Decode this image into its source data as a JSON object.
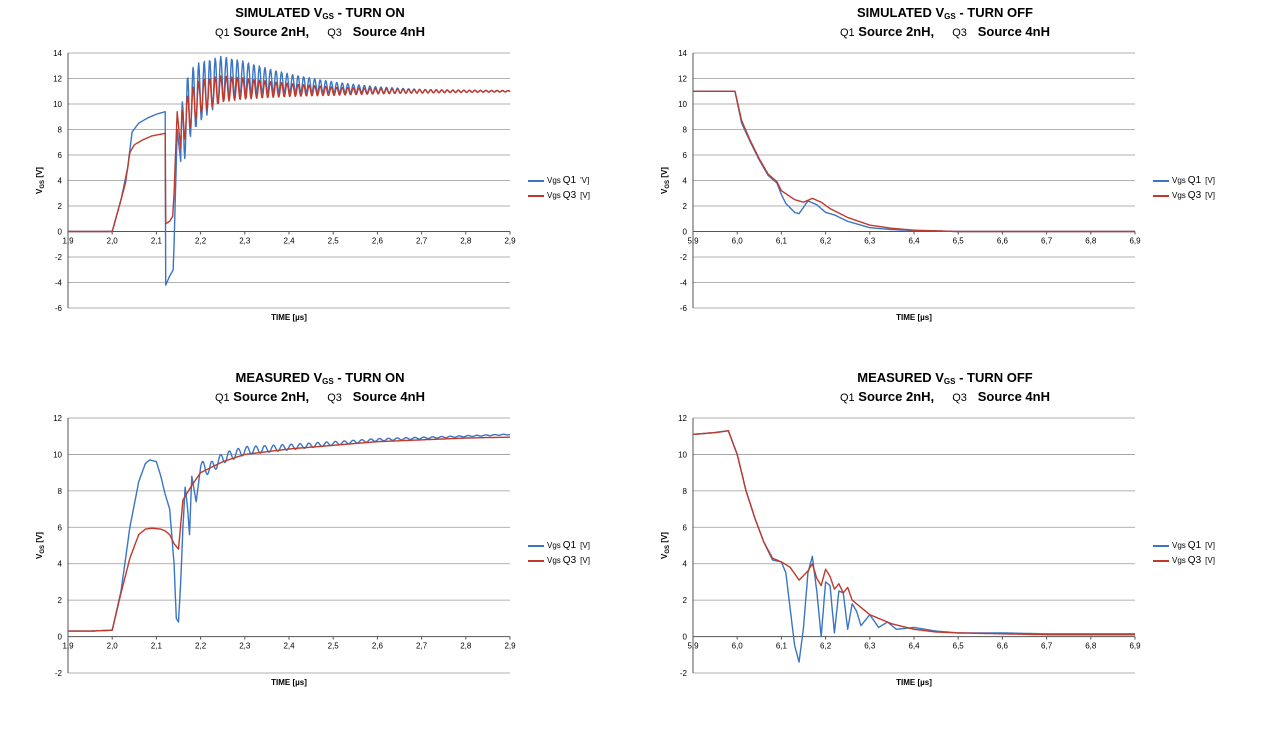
{
  "colors": {
    "q1": "#3a75c4",
    "q3": "#c0392b"
  },
  "chart_data": [
    {
      "type": "line",
      "title_main": "SIMULATED V",
      "title_sub": "GS",
      "title_rest": " - TURN ON",
      "subtitle": {
        "q1": "Q1",
        "s1": "Source 2nH,",
        "q3": "Q3",
        "s3": "Source 4nH"
      },
      "xlabel": "TIME [µs]",
      "ylabel_main": "V",
      "ylabel_sub": "GS",
      "ylabel_rest": " [V]",
      "xlim": [
        1.9,
        2.9
      ],
      "ylim": [
        -6,
        14
      ],
      "xticks": [
        "1,9",
        "2,0",
        "2,1",
        "2,2",
        "2,3",
        "2,4",
        "2,5",
        "2,6",
        "2,7",
        "2,8",
        "2,9"
      ],
      "yticks": [
        "-6",
        "-4",
        "-2",
        "0",
        "2",
        "4",
        "6",
        "8",
        "10",
        "12",
        "14"
      ],
      "ystep": 2,
      "legend": [
        {
          "pre": "Vgs",
          "name": "Q1",
          "unit": "'V]"
        },
        {
          "pre": "Vgs",
          "name": "Q3",
          "unit": "[V]"
        }
      ],
      "series": [
        {
          "name": "Vgs Q1",
          "x": [
            1.9,
            2.0,
            2.02,
            2.035,
            2.045,
            2.06,
            2.08,
            2.1,
            2.12,
            2.121,
            2.13,
            2.138,
            2.14,
            2.147,
            2.155,
            2.16,
            2.175,
            2.2,
            2.25,
            2.3,
            2.35,
            2.4,
            2.5,
            2.6,
            2.7,
            2.8,
            2.9
          ],
          "y": [
            0,
            0,
            2.5,
            5,
            7.8,
            8.5,
            8.9,
            9.2,
            9.4,
            -4.2,
            -3.5,
            -3.0,
            -1,
            8,
            5.5,
            8,
            10,
            11,
            12,
            12,
            11.8,
            11.6,
            11.3,
            11.1,
            11,
            11,
            11
          ],
          "osc": {
            "start": 2.155,
            "period": 0.0125,
            "amp0": 3.0,
            "decay": 0.18
          }
        },
        {
          "name": "Vgs Q3",
          "x": [
            1.9,
            2.0,
            2.02,
            2.03,
            2.04,
            2.05,
            2.07,
            2.09,
            2.12,
            2.121,
            2.13,
            2.137,
            2.14,
            2.147,
            2.155,
            2.16,
            2.18,
            2.2,
            2.25,
            2.3,
            2.4,
            2.5,
            2.6,
            2.7,
            2.8,
            2.9
          ],
          "y": [
            0,
            0,
            2.5,
            3.8,
            6.2,
            6.8,
            7.2,
            7.5,
            7.7,
            0.6,
            0.8,
            1.2,
            3,
            9.4,
            6.5,
            8.5,
            9.8,
            10.6,
            11.2,
            11.2,
            11.1,
            11,
            11,
            11,
            11,
            11
          ],
          "osc": {
            "start": 2.155,
            "period": 0.0125,
            "amp0": 1.6,
            "decay": 0.22
          }
        }
      ]
    },
    {
      "type": "line",
      "title_main": "SIMULATED V",
      "title_sub": "GS",
      "title_rest": " - TURN OFF",
      "subtitle": {
        "q1": "Q1",
        "s1": "Source 2nH,",
        "q3": "Q3",
        "s3": "Source 4nH"
      },
      "xlabel": "TIME [µs]",
      "ylabel_main": "V",
      "ylabel_sub": "GS",
      "ylabel_rest": " [V]",
      "xlim": [
        5.9,
        6.9
      ],
      "ylim": [
        -6,
        14
      ],
      "xticks": [
        "5,9",
        "6,0",
        "6,1",
        "6,2",
        "6,3",
        "6,4",
        "6,5",
        "6,6",
        "6,7",
        "6,8",
        "6,9"
      ],
      "yticks": [
        "-6",
        "-4",
        "-2",
        "0",
        "2",
        "4",
        "6",
        "8",
        "10",
        "12",
        "14"
      ],
      "ystep": 2,
      "legend": [
        {
          "pre": "Vgs",
          "name": "Q1",
          "unit": "[V]"
        },
        {
          "pre": "Vgs",
          "name": "Q3",
          "unit": "[V]"
        }
      ],
      "series": [
        {
          "name": "Vgs Q1",
          "x": [
            5.9,
            5.99,
            5.995,
            6.01,
            6.03,
            6.05,
            6.07,
            6.09,
            6.1,
            6.11,
            6.13,
            6.14,
            6.16,
            6.18,
            6.2,
            6.22,
            6.25,
            6.28,
            6.3,
            6.35,
            6.4,
            6.5,
            6.9
          ],
          "y": [
            11,
            11,
            11,
            8.5,
            7,
            5.6,
            4.4,
            3.8,
            2.9,
            2.2,
            1.5,
            1.4,
            2.4,
            2.1,
            1.5,
            1.3,
            0.8,
            0.5,
            0.3,
            0.15,
            0.08,
            0,
            0
          ]
        },
        {
          "name": "Vgs Q3",
          "x": [
            5.9,
            5.99,
            5.995,
            6.01,
            6.03,
            6.05,
            6.07,
            6.09,
            6.1,
            6.13,
            6.15,
            6.17,
            6.19,
            6.21,
            6.25,
            6.3,
            6.35,
            6.4,
            6.5,
            6.9
          ],
          "y": [
            11,
            11,
            11,
            8.7,
            7.1,
            5.7,
            4.5,
            3.9,
            3.2,
            2.5,
            2.3,
            2.6,
            2.3,
            1.8,
            1.1,
            0.5,
            0.25,
            0.1,
            0,
            0
          ]
        }
      ]
    },
    {
      "type": "line",
      "title_main": "MEASURED V",
      "title_sub": "GS",
      "title_rest": " - TURN ON",
      "subtitle": {
        "q1": "Q1",
        "s1": "Source 2nH,",
        "q3": "Q3",
        "s3": "Source 4nH"
      },
      "xlabel": "TIME [µs]",
      "ylabel_main": "V",
      "ylabel_sub": "GS",
      "ylabel_rest": " [V]",
      "xlim": [
        1.9,
        2.9
      ],
      "ylim": [
        -2,
        12
      ],
      "xticks": [
        "1,9",
        "2,0",
        "2,1",
        "2,2",
        "2,3",
        "2,4",
        "2,5",
        "2,6",
        "2,7",
        "2,8",
        "2,9"
      ],
      "yticks": [
        "-2",
        "0",
        "2",
        "4",
        "6",
        "8",
        "10",
        "12"
      ],
      "ystep": 2,
      "legend": [
        {
          "pre": "Vgs",
          "name": "Q1",
          "unit": "[V]"
        },
        {
          "pre": "Vgs",
          "name": "Q3",
          "unit": "[V]"
        }
      ],
      "series": [
        {
          "name": "Vgs Q1",
          "x": [
            1.9,
            1.95,
            2.0,
            2.02,
            2.04,
            2.06,
            2.075,
            2.085,
            2.1,
            2.11,
            2.12,
            2.13,
            2.14,
            2.145,
            2.15,
            2.155,
            2.16,
            2.165,
            2.17,
            2.175,
            2.18,
            2.19,
            2.2,
            2.22,
            2.25,
            2.3,
            2.4,
            2.5,
            2.6,
            2.7,
            2.8,
            2.9
          ],
          "y": [
            0.3,
            0.3,
            0.35,
            2.5,
            6,
            8.5,
            9.5,
            9.7,
            9.6,
            8.8,
            7.8,
            7,
            4,
            1,
            0.8,
            3,
            6,
            8.2,
            7.2,
            5.6,
            8.8,
            7.4,
            9.3,
            9.2,
            9.8,
            10.2,
            10.4,
            10.6,
            10.8,
            10.9,
            11,
            11.1
          ],
          "osc": {
            "start": 2.2,
            "period": 0.02,
            "amp0": 0.35,
            "decay": 0.25
          }
        },
        {
          "name": "Vgs Q3",
          "x": [
            1.9,
            1.95,
            2.0,
            2.02,
            2.04,
            2.06,
            2.075,
            2.09,
            2.11,
            2.12,
            2.13,
            2.14,
            2.15,
            2.16,
            2.18,
            2.2,
            2.25,
            2.3,
            2.4,
            2.5,
            2.6,
            2.7,
            2.8,
            2.9
          ],
          "y": [
            0.3,
            0.3,
            0.35,
            2.4,
            4.3,
            5.6,
            5.9,
            5.95,
            5.9,
            5.8,
            5.6,
            5.1,
            4.8,
            7.5,
            8.3,
            9,
            9.6,
            10,
            10.3,
            10.5,
            10.7,
            10.8,
            10.9,
            10.95
          ]
        }
      ]
    },
    {
      "type": "line",
      "title_main": "MEASURED V",
      "title_sub": "GS",
      "title_rest": " - TURN OFF",
      "subtitle": {
        "q1": "Q1",
        "s1": "Source 2nH,",
        "q3": "Q3",
        "s3": "Source 4nH"
      },
      "xlabel": "TIME [µs]",
      "ylabel_main": "V",
      "ylabel_sub": "GS",
      "ylabel_rest": " [V]",
      "xlim": [
        5.9,
        6.9
      ],
      "ylim": [
        -2,
        12
      ],
      "xticks": [
        "5,9",
        "6,0",
        "6,1",
        "6,2",
        "6,3",
        "6,4",
        "6,5",
        "6,6",
        "6,7",
        "6,8",
        "6,9"
      ],
      "yticks": [
        "-2",
        "0",
        "2",
        "4",
        "6",
        "8",
        "10",
        "12"
      ],
      "ystep": 2,
      "legend": [
        {
          "pre": "Vgs",
          "name": "Q1",
          "unit": "[V]"
        },
        {
          "pre": "Vgs",
          "name": "Q3",
          "unit": "[V]"
        }
      ],
      "series": [
        {
          "name": "Vgs Q1",
          "x": [
            5.9,
            5.95,
            5.98,
            6.0,
            6.02,
            6.04,
            6.06,
            6.08,
            6.1,
            6.11,
            6.12,
            6.13,
            6.14,
            6.15,
            6.16,
            6.17,
            6.18,
            6.19,
            6.2,
            6.21,
            6.22,
            6.23,
            6.24,
            6.25,
            6.26,
            6.27,
            6.28,
            6.3,
            6.32,
            6.34,
            6.36,
            6.4,
            6.45,
            6.5,
            6.6,
            6.7,
            6.8,
            6.9
          ],
          "y": [
            11.1,
            11.2,
            11.3,
            10,
            8,
            6.5,
            5.2,
            4.2,
            4.1,
            3.5,
            1.5,
            -0.5,
            -1.4,
            0.5,
            3.5,
            4.4,
            2.5,
            0,
            3,
            2.8,
            0.2,
            2.5,
            2.4,
            0.4,
            1.8,
            1.4,
            0.6,
            1.2,
            0.5,
            0.8,
            0.4,
            0.5,
            0.3,
            0.2,
            0.2,
            0.15,
            0.15,
            0.15
          ]
        },
        {
          "name": "Vgs Q3",
          "x": [
            5.9,
            5.95,
            5.98,
            6.0,
            6.02,
            6.04,
            6.06,
            6.08,
            6.1,
            6.12,
            6.14,
            6.16,
            6.17,
            6.18,
            6.19,
            6.2,
            6.21,
            6.22,
            6.23,
            6.24,
            6.25,
            6.26,
            6.28,
            6.3,
            6.35,
            6.4,
            6.45,
            6.5,
            6.6,
            6.7,
            6.8,
            6.9
          ],
          "y": [
            11.1,
            11.2,
            11.3,
            10,
            8,
            6.5,
            5.2,
            4.3,
            4.1,
            3.8,
            3.1,
            3.6,
            4.0,
            3.2,
            2.8,
            3.7,
            3.3,
            2.6,
            2.9,
            2.4,
            2.7,
            2.0,
            1.6,
            1.2,
            0.7,
            0.4,
            0.25,
            0.2,
            0.15,
            0.1,
            0.1,
            0.1
          ]
        }
      ]
    }
  ]
}
